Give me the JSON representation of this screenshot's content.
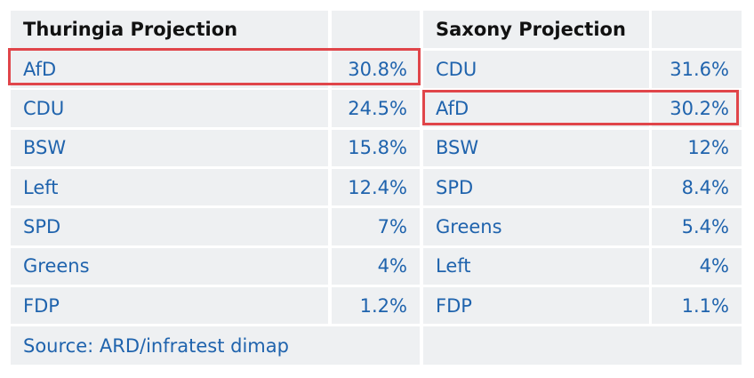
{
  "tables": [
    {
      "title": "Thuringia Projection",
      "rows": [
        [
          "AfD",
          "30.8%"
        ],
        [
          "CDU",
          "24.5%"
        ],
        [
          "BSW",
          "15.8%"
        ],
        [
          "Left",
          "12.4%"
        ],
        [
          "SPD",
          "7%"
        ],
        [
          "Greens",
          "4%"
        ],
        [
          "FDP",
          "1.2%"
        ]
      ]
    },
    {
      "title": "Saxony Projection",
      "rows": [
        [
          "CDU",
          "31.6%"
        ],
        [
          "AfD",
          "30.2%"
        ],
        [
          "BSW",
          "12%"
        ],
        [
          "SPD",
          "8.4%"
        ],
        [
          "Greens",
          "5.4%"
        ],
        [
          "Left",
          "4%"
        ],
        [
          "FDP",
          "1.1%"
        ]
      ]
    }
  ],
  "source": "Source: ARD/infratest dimap"
}
